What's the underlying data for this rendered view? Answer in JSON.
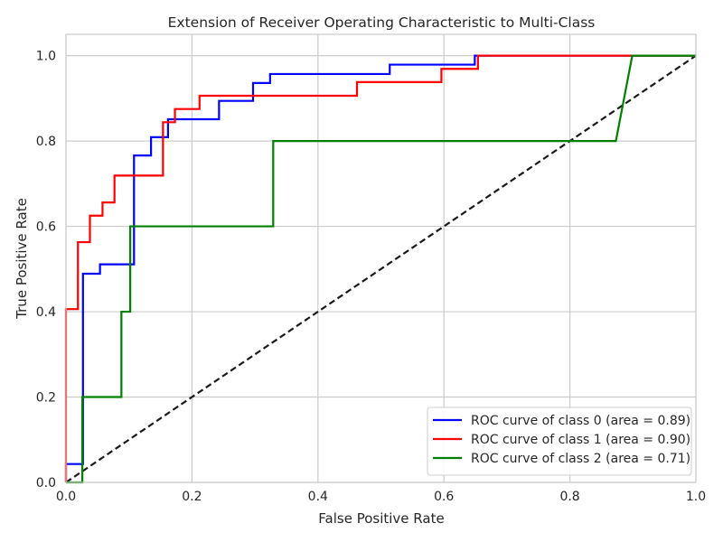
{
  "chart_data": {
    "type": "line",
    "title": "Extension of Receiver Operating Characteristic to Multi-Class",
    "xlabel": "False Positive Rate",
    "ylabel": "True Positive Rate",
    "xlim": [
      0.0,
      1.0
    ],
    "ylim": [
      0.0,
      1.05
    ],
    "xticks": [
      "0.0",
      "0.2",
      "0.4",
      "0.6",
      "0.8",
      "1.0"
    ],
    "yticks": [
      "0.0",
      "0.2",
      "0.4",
      "0.6",
      "0.8",
      "1.0"
    ],
    "grid": true,
    "legend_position": "lower-right",
    "series": [
      {
        "name": "ROC curve of class 0 (area = 0.89)",
        "color": "#0000ff",
        "x": [
          0.0,
          0.0,
          0.027,
          0.027,
          0.027,
          0.054,
          0.054,
          0.108,
          0.108,
          0.135,
          0.135,
          0.162,
          0.162,
          0.243,
          0.243,
          0.297,
          0.297,
          0.324,
          0.324,
          0.514,
          0.514,
          0.649,
          0.649,
          1.0
        ],
        "y": [
          0.0,
          0.043,
          0.043,
          0.085,
          0.489,
          0.489,
          0.511,
          0.511,
          0.766,
          0.766,
          0.809,
          0.809,
          0.851,
          0.851,
          0.894,
          0.894,
          0.936,
          0.936,
          0.957,
          0.957,
          0.979,
          0.979,
          1.0,
          1.0
        ]
      },
      {
        "name": "ROC curve of class 1 (area = 0.90)",
        "color": "#ff0000",
        "x": [
          0.0,
          0.0,
          0.019,
          0.019,
          0.038,
          0.038,
          0.058,
          0.058,
          0.077,
          0.077,
          0.154,
          0.154,
          0.173,
          0.173,
          0.212,
          0.212,
          0.462,
          0.462,
          0.596,
          0.596,
          0.654,
          0.654,
          1.0
        ],
        "y": [
          0.0,
          0.406,
          0.406,
          0.563,
          0.563,
          0.625,
          0.625,
          0.656,
          0.656,
          0.719,
          0.719,
          0.844,
          0.844,
          0.875,
          0.875,
          0.906,
          0.906,
          0.938,
          0.938,
          0.969,
          0.969,
          1.0,
          1.0
        ]
      },
      {
        "name": "ROC curve of class 2 (area = 0.71)",
        "color": "#008000",
        "x": [
          0.0,
          0.026,
          0.026,
          0.088,
          0.088,
          0.102,
          0.102,
          0.329,
          0.329,
          0.873,
          0.899,
          1.0
        ],
        "y": [
          0.0,
          0.0,
          0.2,
          0.2,
          0.4,
          0.4,
          0.6,
          0.6,
          0.8,
          0.8,
          1.0,
          1.0
        ]
      },
      {
        "name": "",
        "color": "#1a1a1a",
        "dashed": true,
        "x": [
          0.0,
          1.0
        ],
        "y": [
          0.0,
          1.0
        ]
      }
    ]
  }
}
